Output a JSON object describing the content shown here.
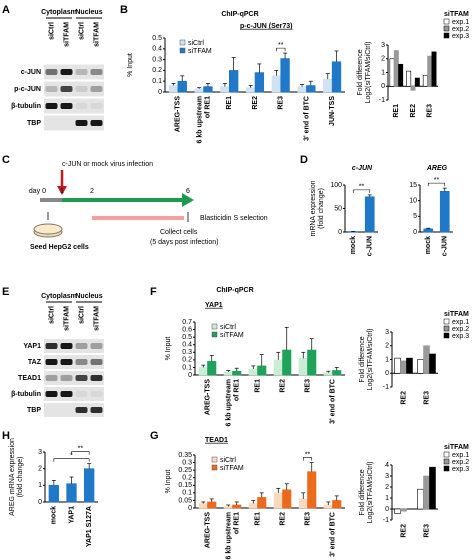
{
  "panels": [
    "A",
    "B",
    "C",
    "D",
    "E",
    "F",
    "G",
    "H"
  ],
  "blots": [
    {
      "compartments": [
        "Cytoplasm",
        "Nucleus"
      ],
      "lanes": [
        "siCtrl",
        "siTFAM",
        "siCtrl",
        "siTFAM"
      ],
      "rows": [
        "c-JUN",
        "p-c-JUN",
        "β-tubulin",
        "TBP"
      ]
    },
    {
      "compartments": [
        "Cytoplasm",
        "Nucleus"
      ],
      "lanes": [
        "siCtrl",
        "siTFAM",
        "siCtrl",
        "siTFAM"
      ],
      "rows": [
        "YAP1",
        "TAZ",
        "TEAD1",
        "β-tubulin",
        "TBP"
      ]
    }
  ],
  "diagram": {
    "infection": "c-JUN or mock virus infection",
    "day_label": "day 0",
    "days": [
      "1",
      "2",
      "6"
    ],
    "selection": "Blasticidin S selection",
    "seed": "Seed HepG2 cells",
    "collect": "Collect cells",
    "collect_note": "(5 days  post infection)"
  },
  "chart_data": [
    {
      "type": "bar",
      "title": "ChIP-qPCR",
      "subtitle": "p-c-JUN (Ser73)",
      "ylabel": [
        "% Input"
      ],
      "categories": [
        "AREG-TSS",
        "6 kb upstream of RE1",
        "RE1",
        "RE2",
        "RE3",
        "3' end of BTC",
        "JUN-TSS"
      ],
      "series": [
        {
          "name": "siCtrl",
          "color": "#cfe3f5",
          "values": [
            0.06,
            0.03,
            0.05,
            0.04,
            0.15,
            0.05,
            0.12
          ],
          "errors": [
            0.02,
            0.01,
            0.03,
            0.02,
            0.05,
            0.02,
            0.05
          ]
        },
        {
          "name": "siTFAM",
          "color": "#1f78c8",
          "values": [
            0.1,
            0.05,
            0.2,
            0.18,
            0.31,
            0.06,
            0.28
          ],
          "errors": [
            0.05,
            0.03,
            0.12,
            0.08,
            0.05,
            0.04,
            0.1
          ]
        }
      ],
      "ylim": [
        0,
        0.5
      ],
      "yticks": [
        0,
        0.1,
        0.2,
        0.3,
        0.4,
        0.5
      ],
      "annotations": [
        "**"
      ]
    },
    {
      "type": "bar",
      "ylabel": [
        "Fold difference",
        "Log2(siTFAM/siCtrl)"
      ],
      "legend_title": "siTFAM",
      "categories": [
        "RE1",
        "RE2",
        "RE3"
      ],
      "series": [
        {
          "name": "exp.1",
          "color": "#ffffff",
          "values": [
            2.0,
            1.1,
            0.8
          ]
        },
        {
          "name": "exp.2",
          "color": "#999999",
          "values": [
            2.6,
            -0.3,
            2.2
          ]
        },
        {
          "name": "exp.3",
          "color": "#000000",
          "values": [
            1.6,
            0.6,
            2.5
          ]
        }
      ],
      "ylim": [
        -1,
        3
      ],
      "yticks": [
        -1,
        0,
        1,
        2,
        3
      ]
    },
    {
      "type": "bar",
      "title": "c-JUN",
      "ylabel": [
        "mRNA expression",
        "(fold change)"
      ],
      "categories": [
        "mock",
        "c-JUN"
      ],
      "series": [
        {
          "name": "c-JUN",
          "color": "#1f78c8",
          "values": [
            1,
            75
          ],
          "errors": [
            0.3,
            4
          ]
        }
      ],
      "ylim": [
        0,
        100
      ],
      "yticks": [
        0,
        50,
        100
      ],
      "annotations": [
        "**"
      ]
    },
    {
      "type": "bar",
      "title": "AREG",
      "categories": [
        "mock",
        "c-JUN"
      ],
      "series": [
        {
          "name": "AREG",
          "color": "#1f78c8",
          "values": [
            1,
            13
          ],
          "errors": [
            0.2,
            1
          ]
        }
      ],
      "ylim": [
        0,
        15
      ],
      "yticks": [
        0,
        5,
        10,
        15
      ],
      "annotations": [
        "**"
      ]
    },
    {
      "type": "bar",
      "title": "ChIP-qPCR",
      "subtitle": "YAP1",
      "ylabel": [
        "% Input"
      ],
      "categories": [
        "AREG-TSS",
        "6 kb upstream of RE1",
        "RE1",
        "RE2",
        "RE3",
        "3' end of BTC"
      ],
      "series": [
        {
          "name": "siCtrl",
          "color": "#c9ecd4",
          "values": [
            0.1,
            0.04,
            0.08,
            0.2,
            0.22,
            0.03
          ],
          "errors": [
            0.03,
            0.02,
            0.04,
            0.1,
            0.08,
            0.02
          ]
        },
        {
          "name": "siTFAM",
          "color": "#1fa35a",
          "values": [
            0.18,
            0.05,
            0.12,
            0.33,
            0.33,
            0.06
          ],
          "errors": [
            0.08,
            0.04,
            0.15,
            0.3,
            0.15,
            0.04
          ]
        }
      ],
      "ylim": [
        0,
        0.7
      ],
      "yticks": [
        0,
        0.1,
        0.2,
        0.3,
        0.4,
        0.5,
        0.6,
        0.7
      ]
    },
    {
      "type": "bar",
      "ylabel": [
        "Fold difference",
        "Log2(siTFAM/siCtrl)"
      ],
      "legend_title": "siTFAM",
      "categories": [
        "RE2",
        "RE3"
      ],
      "series": [
        {
          "name": "exp.1",
          "color": "#ffffff",
          "values": [
            1.1,
            1.0
          ]
        },
        {
          "name": "exp.2",
          "color": "#999999",
          "values": [
            0.9,
            2.0
          ]
        },
        {
          "name": "exp.3",
          "color": "#000000",
          "values": [
            1.1,
            1.4
          ]
        }
      ],
      "ylim": [
        -1,
        3
      ],
      "yticks": [
        -1,
        0,
        1,
        2,
        3
      ]
    },
    {
      "type": "bar",
      "subtitle": "TEAD1",
      "ylabel": [
        "% Input"
      ],
      "categories": [
        "AREG-TSS",
        "6 kb upstream of RE1",
        "RE1",
        "RE2",
        "RE3",
        "3' end of BTC"
      ],
      "series": [
        {
          "name": "siCtrl",
          "color": "#fbd9c0",
          "values": [
            0.03,
            0.01,
            0.03,
            0.1,
            0.06,
            0.02
          ],
          "errors": [
            0.01,
            0.01,
            0.02,
            0.03,
            0.04,
            0.02
          ]
        },
        {
          "name": "siTFAM",
          "color": "#ec6a1c",
          "values": [
            0.04,
            0.02,
            0.07,
            0.12,
            0.24,
            0.05
          ],
          "errors": [
            0.02,
            0.02,
            0.03,
            0.04,
            0.06,
            0.03
          ]
        }
      ],
      "ylim": [
        0,
        0.35
      ],
      "yticks": [
        0,
        0.05,
        0.1,
        0.15,
        0.2,
        0.25,
        0.3,
        0.35
      ],
      "annotations": [
        "**"
      ]
    },
    {
      "type": "bar",
      "ylabel": [
        "Fold difference",
        "Log2(siTFAM/siCtrl)"
      ],
      "legend_title": "siTFAM",
      "categories": [
        "RE2",
        "RE3"
      ],
      "series": [
        {
          "name": "exp.1",
          "color": "#ffffff",
          "values": [
            -0.4,
            1.8
          ]
        },
        {
          "name": "exp.2",
          "color": "#999999",
          "values": [
            -0.2,
            3.0
          ]
        },
        {
          "name": "exp.3",
          "color": "#000000",
          "values": [
            0,
            3.8
          ]
        }
      ],
      "ylim": [
        -1,
        4
      ],
      "yticks": [
        -1,
        0,
        1,
        2,
        3,
        4
      ]
    },
    {
      "type": "bar",
      "ylabel": [
        "AREG mRNA expression",
        "(fold change)"
      ],
      "categories": [
        "mock",
        "YAP1",
        "YAP1 S127A"
      ],
      "series": [
        {
          "name": "AREG",
          "color": "#1f78c8",
          "values": [
            1.0,
            1.1,
            2.0
          ],
          "errors": [
            0.3,
            0.4,
            0.3
          ]
        }
      ],
      "ylim": [
        0,
        3
      ],
      "yticks": [
        0,
        1,
        2,
        3
      ],
      "annotations": [
        "*",
        "**"
      ]
    }
  ]
}
